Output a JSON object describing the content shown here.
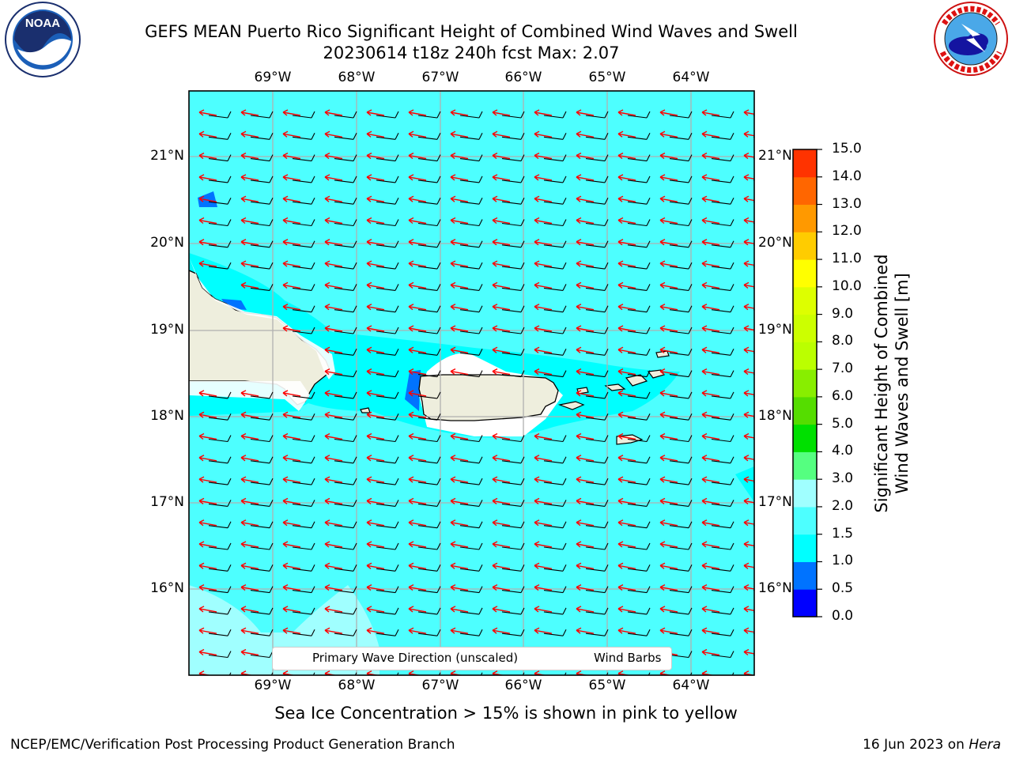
{
  "title": {
    "line1": "GEFS MEAN Puerto Rico Significant Height of Combined Wind Waves and Swell",
    "line2": "20230614 t18z 240h fcst   Max: 2.07"
  },
  "map": {
    "lon_ticks": [
      "69°W",
      "68°W",
      "67°W",
      "66°W",
      "65°W",
      "64°W"
    ],
    "lat_ticks": [
      "21°N",
      "20°N",
      "19°N",
      "18°N",
      "17°N",
      "16°N"
    ],
    "colors": {
      "ocean_main": "#4dffff",
      "ocean_calm": "#00ffff",
      "ocean_light": "#a0ffff",
      "land": "#eeeedd",
      "grid": "#b0b0b0",
      "wave_arrow": "#ff0000",
      "wind_barb": "#000000",
      "coast": "#000000"
    }
  },
  "legend": {
    "wave_label": "Primary Wave Direction (unscaled)",
    "wind_label": "Wind Barbs"
  },
  "colorbar": {
    "title_line1": "Significant Height of Combined",
    "title_line2": "Wind Waves and Swell [m]",
    "tick_labels": [
      "15.0",
      "14.0",
      "13.0",
      "12.0",
      "11.0",
      "10.0",
      "9.0",
      "8.0",
      "7.0",
      "6.0",
      "5.0",
      "4.0",
      "3.0",
      "2.0",
      "1.5",
      "1.0",
      "0.5",
      "0.0"
    ],
    "colors": [
      "#0000ff",
      "#0073ff",
      "#00ffff",
      "#4dffff",
      "#a0ffff",
      "#55ff80",
      "#00e000",
      "#55dd00",
      "#88ee00",
      "#bbff00",
      "#ccff00",
      "#ddff00",
      "#ffff00",
      "#ffcc00",
      "#ff9900",
      "#ff6600",
      "#ff3300",
      "#ff0000"
    ]
  },
  "ice_note": "Sea Ice Concentration > 15% is shown in pink to yellow",
  "footer": {
    "left": "NCEP/EMC/Verification Post Processing Product Generation Branch",
    "date": "16 Jun 2023 on ",
    "machine": "Hera"
  },
  "logos": {
    "noaa_text": "NOAA",
    "noaa_ring_text": "NATIONAL OCEANIC AND ATMOSPHERIC ADMINISTRATION",
    "nws_ring_text": "NATIONAL WEATHER SERVICE"
  }
}
